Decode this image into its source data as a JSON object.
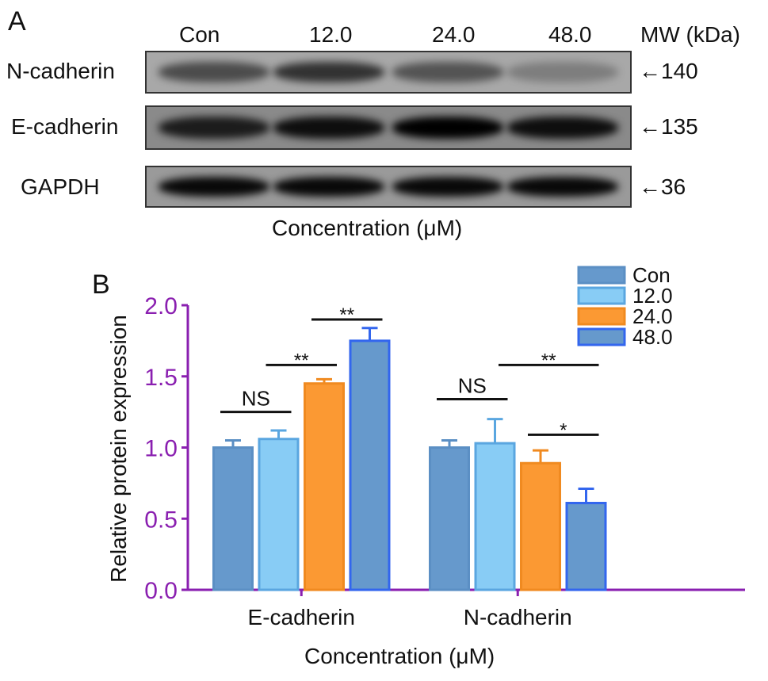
{
  "panel_a": {
    "label": "A",
    "lanes": [
      "Con",
      "12.0",
      "24.0",
      "48.0"
    ],
    "mw_header": "MW (kDa)",
    "rows": [
      {
        "protein": "N-cadherin",
        "mw": "140",
        "intensity": [
          0.55,
          0.7,
          0.5,
          0.25
        ]
      },
      {
        "protein": "E-cadherin",
        "mw": "135",
        "intensity": [
          0.8,
          0.9,
          1.0,
          0.9
        ]
      },
      {
        "protein": "GAPDH",
        "mw": "36",
        "intensity": [
          0.95,
          0.95,
          0.95,
          0.95
        ]
      }
    ],
    "xlabel": "Concentration (μM)"
  },
  "panel_b": {
    "label": "B"
  },
  "chart_data": {
    "type": "bar",
    "categories": [
      "E-cadherin",
      "N-cadherin"
    ],
    "series": [
      {
        "name": "Con",
        "values": [
          1.0,
          1.0
        ],
        "errors": [
          0.05,
          0.05
        ],
        "color": "#6699cc",
        "stroke": "#5b8fc4"
      },
      {
        "name": "12.0",
        "values": [
          1.06,
          1.03
        ],
        "errors": [
          0.06,
          0.17
        ],
        "color": "#88ccf5",
        "stroke": "#5aa6e0"
      },
      {
        "name": "24.0",
        "values": [
          1.45,
          0.89
        ],
        "errors": [
          0.03,
          0.09
        ],
        "color": "#fb9933",
        "stroke": "#f08a20"
      },
      {
        "name": "48.0",
        "values": [
          1.75,
          0.61
        ],
        "errors": [
          0.09,
          0.1
        ],
        "color": "#6699cc",
        "stroke": "#3366ee"
      }
    ],
    "significance": [
      {
        "category": "E-cadherin",
        "from": 0,
        "to": 1,
        "label": "NS",
        "y": 1.25
      },
      {
        "category": "E-cadherin",
        "from": 1,
        "to": 2,
        "label": "**",
        "y": 1.58
      },
      {
        "category": "E-cadherin",
        "from": 2,
        "to": 3,
        "label": "**",
        "y": 1.9
      },
      {
        "category": "N-cadherin",
        "from": 0,
        "to": 1,
        "label": "NS",
        "y": 1.34
      },
      {
        "category": "N-cadherin",
        "from": -1,
        "to": 3,
        "label": "**",
        "y": 1.58
      },
      {
        "category": "N-cadherin",
        "from": 2,
        "to": 3,
        "label": "*",
        "y": 1.09
      }
    ],
    "title": "",
    "xlabel": "Concentration (μM)",
    "ylabel": "Relative protein expression",
    "ylim": [
      0,
      2.0
    ],
    "yticks": [
      "0.0",
      "0.5",
      "1.0",
      "1.5",
      "2.0"
    ],
    "axis_color": "#8a1fb0",
    "legend_position": "top-right",
    "grid": false
  }
}
